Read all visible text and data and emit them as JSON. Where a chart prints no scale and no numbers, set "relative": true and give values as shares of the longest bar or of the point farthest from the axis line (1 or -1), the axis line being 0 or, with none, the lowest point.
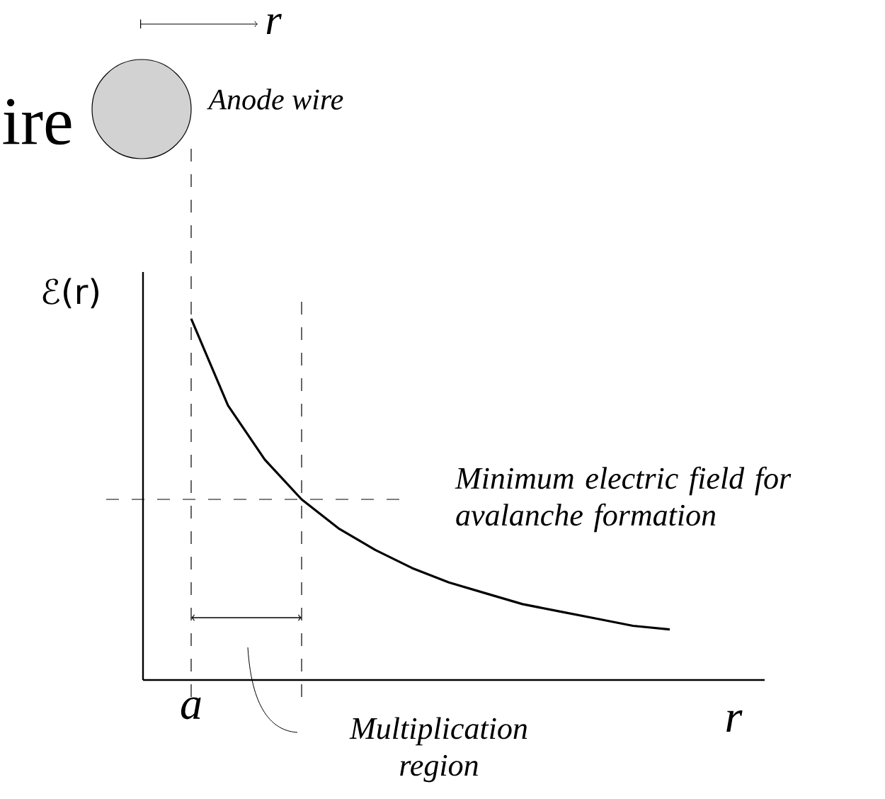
{
  "chart_data": {
    "type": "line",
    "relative": true,
    "xlabel": "r",
    "ylabel": "ℰ(r)",
    "annotations": [
      "ire",
      "Anode wire",
      "r",
      "a",
      "Multiplication region"
    ],
    "categories": [
      null,
      null,
      null,
      null,
      null,
      null,
      null,
      null,
      null,
      null,
      null,
      null,
      null,
      null
    ],
    "series": [
      {
        "color": "#000000",
        "values": [
          1,
          0.76,
          0.61,
          0.5,
          0.42,
          0.36,
          0.31,
          0.27,
          0.24,
          0.21,
          0.19,
          0.17,
          0.15,
          0.14
        ]
      }
    ],
    "ref_lines": [
      {
        "axis": "y",
        "value": 0.5,
        "label": "Minimum electric field for avalanche formation",
        "line_style": "dashed"
      }
    ],
    "marker": "none",
    "line_style": "solid"
  }
}
